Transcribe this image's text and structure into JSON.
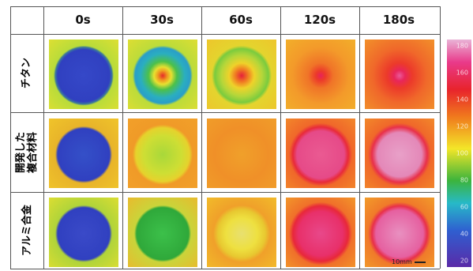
{
  "header": {
    "columns": [
      "0s",
      "30s",
      "60s",
      "120s",
      "180s"
    ]
  },
  "rows": [
    {
      "label": [
        "チタン"
      ]
    },
    {
      "label": [
        "開発した",
        "複合材料"
      ]
    },
    {
      "label": [
        "アルミ合金"
      ]
    }
  ],
  "scale_bar": "10mm",
  "colorbar": {
    "labels": [
      "180",
      "160",
      "140",
      "120",
      "100",
      "80",
      "60",
      "40",
      "20"
    ]
  }
}
